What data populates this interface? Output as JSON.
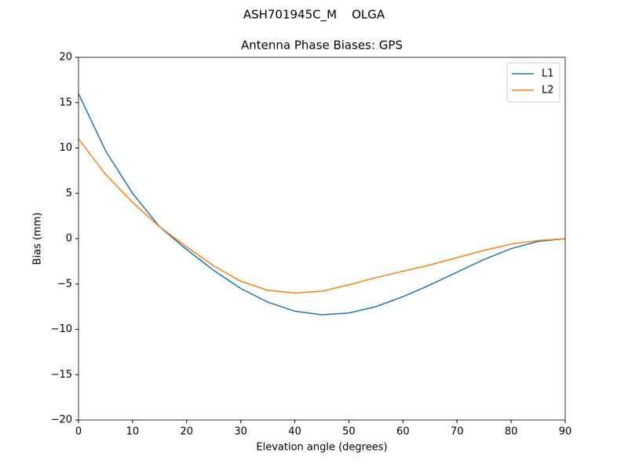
{
  "chart_data": {
    "type": "line",
    "suptitle": "ASH701945C_M    OLGA",
    "title": "Antenna Phase Biases: GPS",
    "xlabel": "Elevation angle (degrees)",
    "ylabel": "Bias (mm)",
    "x": [
      0,
      5,
      10,
      15,
      20,
      25,
      30,
      35,
      40,
      45,
      50,
      55,
      60,
      65,
      70,
      75,
      80,
      85,
      90
    ],
    "series": [
      {
        "name": "L1",
        "color": "#1f77b4",
        "values": [
          16,
          9.7,
          5,
          1.3,
          -1.2,
          -3.5,
          -5.5,
          -7.0,
          -8.0,
          -8.4,
          -8.2,
          -7.5,
          -6.4,
          -5.1,
          -3.7,
          -2.3,
          -1.1,
          -0.3,
          0
        ]
      },
      {
        "name": "L2",
        "color": "#ff7f0e",
        "values": [
          11,
          7.1,
          4,
          1.3,
          -0.9,
          -3.0,
          -4.7,
          -5.7,
          -6.0,
          -5.8,
          -5.1,
          -4.3,
          -3.6,
          -2.9,
          -2.1,
          -1.3,
          -0.6,
          -0.2,
          0
        ]
      }
    ],
    "xlim": [
      0,
      90
    ],
    "xticks": [
      0,
      10,
      20,
      30,
      40,
      50,
      60,
      70,
      80,
      90
    ],
    "ylim": [
      -20,
      20
    ],
    "yticks": [
      {
        "value": -20,
        "label": "−20"
      },
      {
        "value": -15,
        "label": "−15"
      },
      {
        "value": -10,
        "label": "−10"
      },
      {
        "value": -5,
        "label": "−5"
      },
      0,
      5,
      10,
      15,
      20
    ],
    "legend": "upper right",
    "grid": false
  }
}
